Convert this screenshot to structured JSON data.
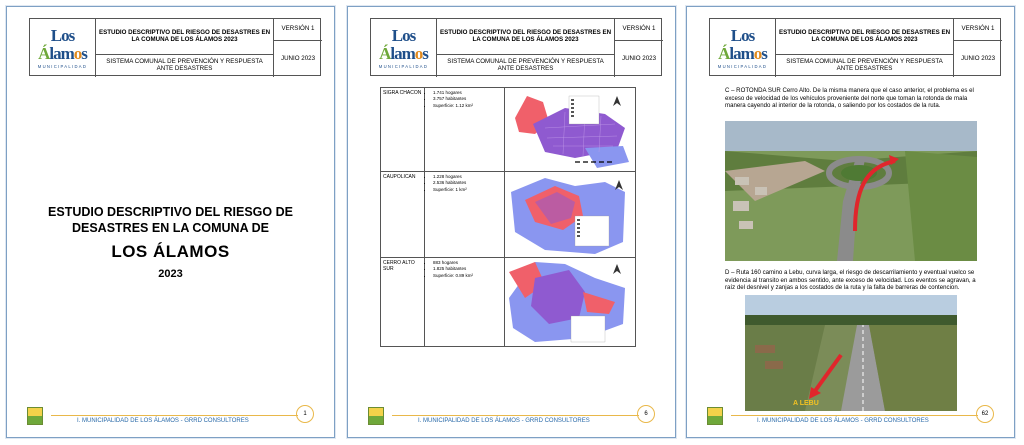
{
  "header": {
    "logo_text": "Los Álamos",
    "logo_sub": "MUNICIPALIDAD",
    "title": "ESTUDIO DESCRIPTIVO DEL RIESGO DE DESASTRES EN LA COMUNA DE LOS ÁLAMOS 2023",
    "version": "VERSIÓN 1",
    "date": "JUNIO 2023",
    "system": "SISTEMA COMUNAL DE PREVENCIÓN Y RESPUESTA ANTE DESASTRES"
  },
  "footer_text": "I. MUNICIPALIDAD DE LOS ÁLAMOS - GRRD CONSULTORES",
  "pages": [
    {
      "page_number": "1"
    },
    {
      "page_number": "6"
    },
    {
      "page_number": "62"
    }
  ],
  "cover": {
    "title_line1": "ESTUDIO DESCRIPTIVO DEL RIESGO DE",
    "title_line2": "DESASTRES EN LA COMUNA DE",
    "name": "LOS ÁLAMOS",
    "year": "2023"
  },
  "table_rows": [
    {
      "name": "SIGRA CHACON",
      "hogares": "1.741 hogares",
      "habitantes": "3.757 habitantes",
      "superficie": "Superficie: 1.12 km²"
    },
    {
      "name": "CAUPOLICAN",
      "hogares": "1.228 hogares",
      "habitantes": "2.536 habitantes",
      "superficie": "Superficie: 1 km²"
    },
    {
      "name": "CERRO ALTO SUR",
      "hogares": "883 hogares",
      "habitantes": "1.825 habitantes",
      "superficie": "Superficie: 0.89 km²"
    }
  ],
  "page3": {
    "para_c": "C – ROTONDA SUR Cerro Alto. De la misma manera que el caso anterior, el problema es el exceso de velocidad de los vehículos proveniente del norte que toman la rotonda de mala manera cayendo al interior de la rotonda, o saliendo por los costados de la ruta.",
    "para_d": "D – Ruta 160 camino a Lebu, curva larga, el riesgo de descarrilamiento y eventual vuelco se evidencia al transito en ambos sentido, ante exceso de velocidad. Los eventos se agravan, a raíz del desnivel y zanjas a los costados de la ruta y la falta de barreras de contencion.",
    "photo_label": "A LEBU"
  },
  "colors": {
    "border": "#7ea0c4",
    "accent": "#e9b84a",
    "footer_text": "#2a6aa8",
    "map_red": "#f0606a",
    "map_purple": "#8f5ad0",
    "map_blue": "#8a96f0"
  }
}
